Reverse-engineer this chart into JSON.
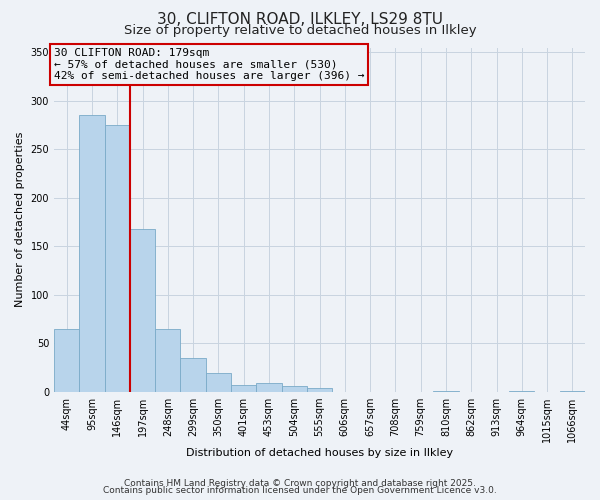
{
  "title": "30, CLIFTON ROAD, ILKLEY, LS29 8TU",
  "subtitle": "Size of property relative to detached houses in Ilkley",
  "xlabel": "Distribution of detached houses by size in Ilkley",
  "ylabel": "Number of detached properties",
  "bar_labels": [
    "44sqm",
    "95sqm",
    "146sqm",
    "197sqm",
    "248sqm",
    "299sqm",
    "350sqm",
    "401sqm",
    "453sqm",
    "504sqm",
    "555sqm",
    "606sqm",
    "657sqm",
    "708sqm",
    "759sqm",
    "810sqm",
    "862sqm",
    "913sqm",
    "964sqm",
    "1015sqm",
    "1066sqm"
  ],
  "bar_values": [
    65,
    285,
    275,
    168,
    65,
    35,
    19,
    7,
    9,
    6,
    4,
    0,
    0,
    0,
    0,
    1,
    0,
    0,
    1,
    0,
    1
  ],
  "bar_color": "#b8d4eb",
  "bar_edge_color": "#7aaac8",
  "grid_color": "#c8d4e0",
  "background_color": "#eef2f7",
  "vline_color": "#cc0000",
  "annotation_text": "30 CLIFTON ROAD: 179sqm\n← 57% of detached houses are smaller (530)\n42% of semi-detached houses are larger (396) →",
  "annotation_box_color": "#cc0000",
  "footer_line1": "Contains HM Land Registry data © Crown copyright and database right 2025.",
  "footer_line2": "Contains public sector information licensed under the Open Government Licence v3.0.",
  "ylim": [
    0,
    355
  ],
  "yticks": [
    0,
    50,
    100,
    150,
    200,
    250,
    300,
    350
  ],
  "title_fontsize": 11,
  "subtitle_fontsize": 9.5,
  "axis_label_fontsize": 8,
  "tick_fontsize": 7,
  "annotation_fontsize": 8,
  "footer_fontsize": 6.5
}
